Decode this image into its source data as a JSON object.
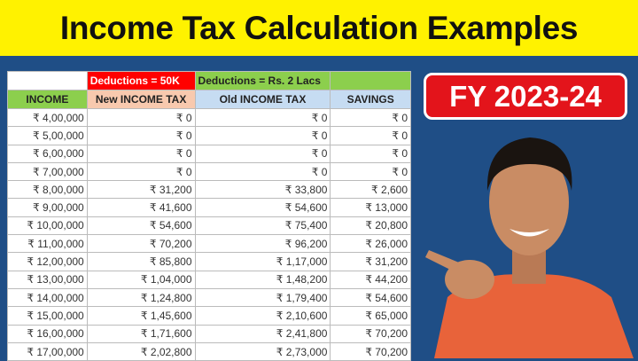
{
  "title": "Income Tax Calculation Examples",
  "badge": "FY 2023-24",
  "table": {
    "groups": [
      "",
      "Deductions = 50K",
      "Deductions = Rs. 2 Lacs",
      ""
    ],
    "headers": [
      "INCOME",
      "New INCOME TAX",
      "Old INCOME TAX",
      "SAVINGS"
    ],
    "rows": [
      [
        "₹ 4,00,000",
        "₹ 0",
        "₹ 0",
        "₹ 0"
      ],
      [
        "₹ 5,00,000",
        "₹ 0",
        "₹ 0",
        "₹ 0"
      ],
      [
        "₹ 6,00,000",
        "₹ 0",
        "₹ 0",
        "₹ 0"
      ],
      [
        "₹ 7,00,000",
        "₹ 0",
        "₹ 0",
        "₹ 0"
      ],
      [
        "₹ 8,00,000",
        "₹ 31,200",
        "₹ 33,800",
        "₹ 2,600"
      ],
      [
        "₹ 9,00,000",
        "₹ 41,600",
        "₹ 54,600",
        "₹ 13,000"
      ],
      [
        "₹ 10,00,000",
        "₹ 54,600",
        "₹ 75,400",
        "₹ 20,800"
      ],
      [
        "₹ 11,00,000",
        "₹ 70,200",
        "₹ 96,200",
        "₹ 26,000"
      ],
      [
        "₹ 12,00,000",
        "₹ 85,800",
        "₹ 1,17,000",
        "₹ 31,200"
      ],
      [
        "₹ 13,00,000",
        "₹ 1,04,000",
        "₹ 1,48,200",
        "₹ 44,200"
      ],
      [
        "₹ 14,00,000",
        "₹ 1,24,800",
        "₹ 1,79,400",
        "₹ 54,600"
      ],
      [
        "₹ 15,00,000",
        "₹ 1,45,600",
        "₹ 2,10,600",
        "₹ 65,000"
      ],
      [
        "₹ 16,00,000",
        "₹ 1,71,600",
        "₹ 2,41,800",
        "₹ 70,200"
      ],
      [
        "₹ 17,00,000",
        "₹ 2,02,800",
        "₹ 2,73,000",
        "₹ 70,200"
      ]
    ]
  },
  "colors": {
    "title_bg": "#fff200",
    "background": "#1f4e86",
    "badge": "#e3141b",
    "deduction_new": "#ff0000",
    "deduction_old": "#8ccf4d"
  }
}
